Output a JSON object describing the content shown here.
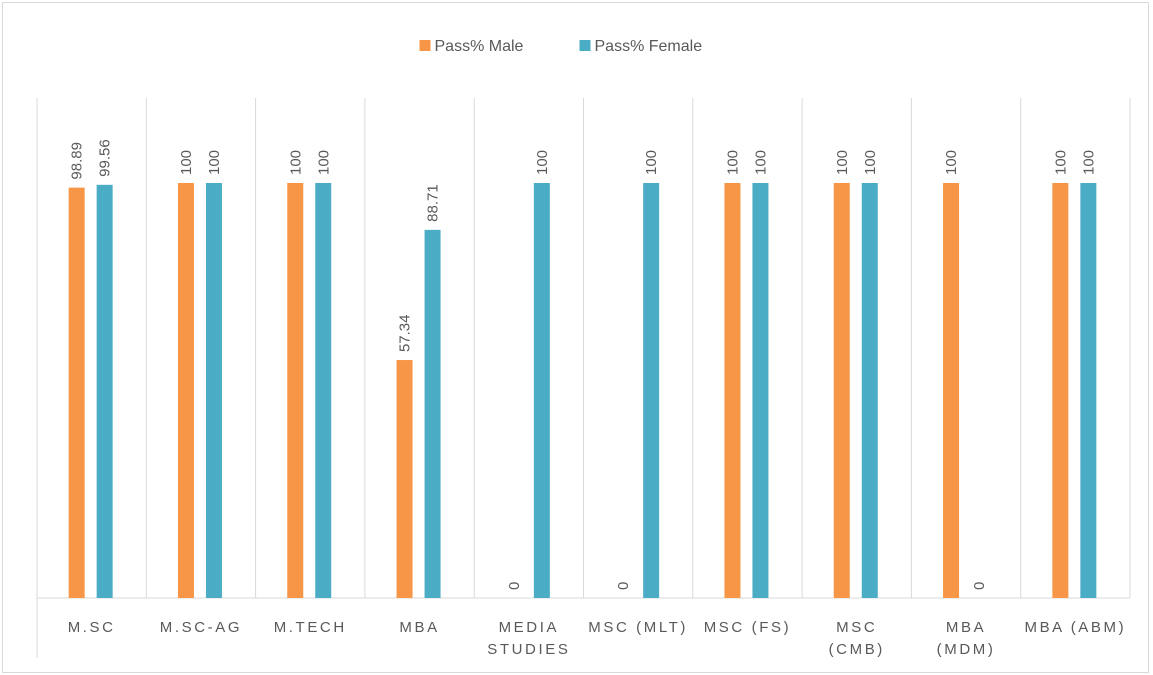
{
  "chart_data": {
    "type": "bar",
    "categories": [
      "M.SC",
      "M.SC-AG",
      "M.TECH",
      "MBA",
      "MEDIA STUDIES",
      "MSC (MLT)",
      "MSC (FS)",
      "MSC (CMB)",
      "MBA (MDM)",
      "MBA (ABM)"
    ],
    "series": [
      {
        "name": "Pass% Male",
        "color": "#f79646",
        "values": [
          98.89,
          100,
          100,
          57.34,
          0,
          0,
          100,
          100,
          100,
          100
        ]
      },
      {
        "name": "Pass% Female",
        "color": "#4bacc6",
        "values": [
          99.56,
          100,
          100,
          88.71,
          100,
          100,
          100,
          100,
          0,
          100
        ]
      }
    ],
    "legend": "top"
  }
}
